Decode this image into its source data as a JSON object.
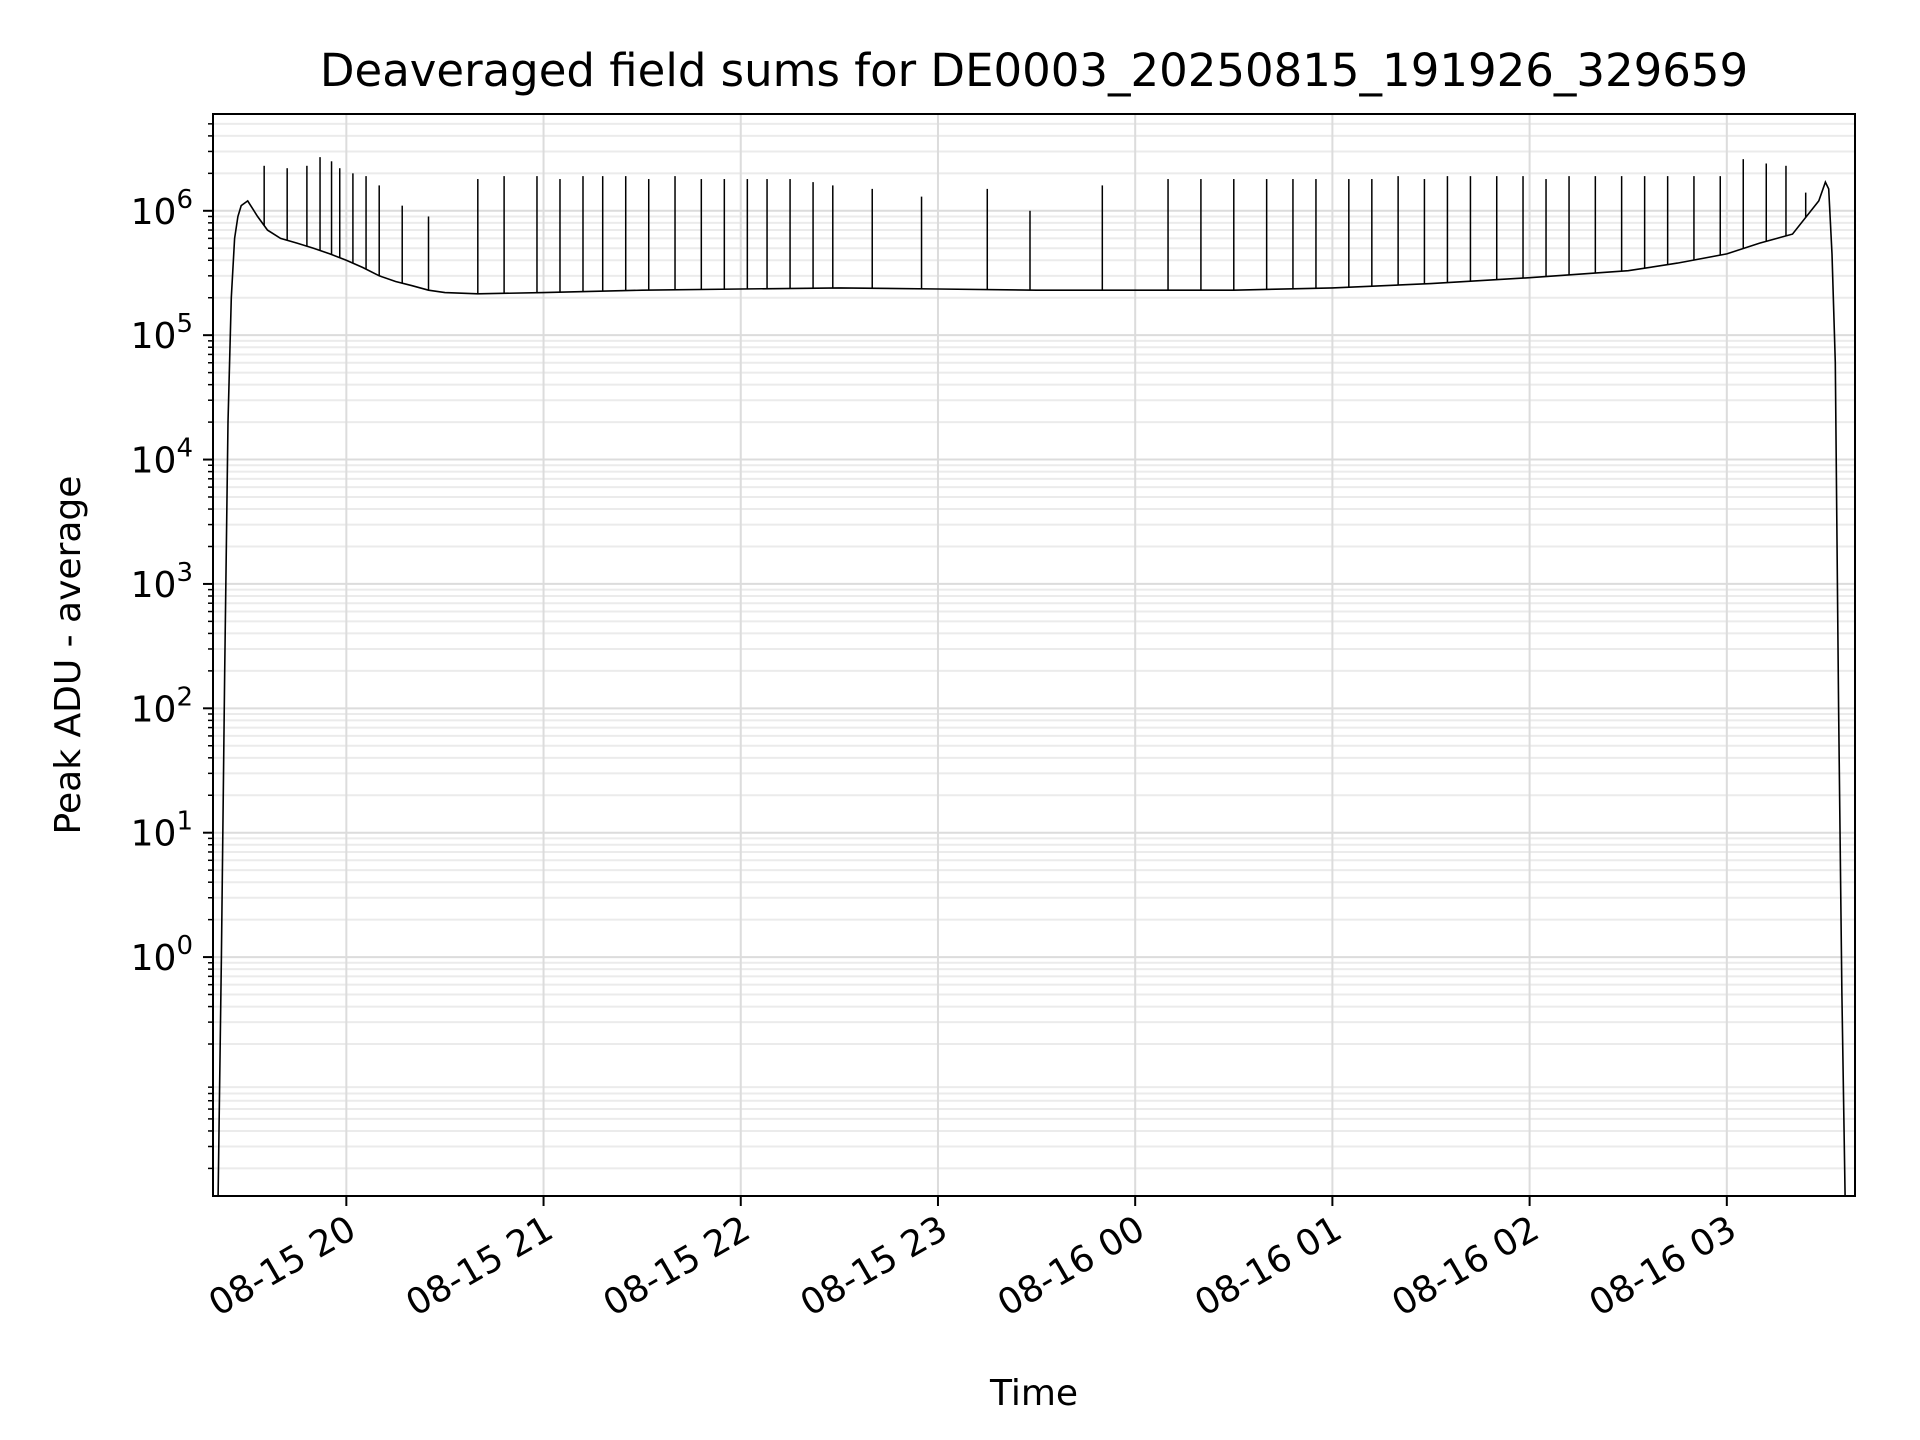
{
  "chart_data": {
    "type": "line",
    "title": "Deaveraged field sums for DE0003_20250815_191926_329659",
    "xlabel": "Time",
    "ylabel": "Peak ADU - average",
    "x_start": "2025-08-15 19:19:26",
    "x_end": "2025-08-16 03:39:00",
    "xlim": [
      "2025-08-15 19:19:26",
      "2025-08-16 03:39:00"
    ],
    "ylim": [
      0.012,
      6000000
    ],
    "yscale": "log",
    "grid": "on (major and minor)",
    "line_color": "#000000",
    "x_tick_labels": [
      "08-15 20",
      "08-15 21",
      "08-15 22",
      "08-15 23",
      "08-16 00",
      "08-16 01",
      "08-16 02",
      "08-16 03"
    ],
    "x_ticks": [
      "2025-08-15 20:00",
      "2025-08-15 21:00",
      "2025-08-15 22:00",
      "2025-08-15 23:00",
      "2025-08-16 00:00",
      "2025-08-16 01:00",
      "2025-08-16 02:00",
      "2025-08-16 03:00"
    ],
    "y_ticks": [
      1,
      10,
      100,
      1000,
      10000,
      100000,
      1000000
    ],
    "y_tick_exponents": [
      "0",
      "1",
      "2",
      "3",
      "4",
      "5",
      "6"
    ],
    "series": [
      {
        "x": [
          "2025-08-15 19:21:00",
          "2025-08-15 19:22:00",
          "2025-08-15 19:23:00",
          "2025-08-15 19:24:00",
          "2025-08-15 19:25:00",
          "2025-08-15 19:26:00",
          "2025-08-15 19:27:00",
          "2025-08-15 19:28:00",
          "2025-08-15 19:30:00",
          "2025-08-15 19:33:00",
          "2025-08-15 19:36:00",
          "2025-08-15 19:40:00",
          "2025-08-15 19:45:00",
          "2025-08-15 19:50:00",
          "2025-08-15 19:55:00",
          "2025-08-15 20:00:00",
          "2025-08-15 20:05:00",
          "2025-08-15 20:10:00",
          "2025-08-15 20:15:00",
          "2025-08-15 20:20:00",
          "2025-08-15 20:25:00",
          "2025-08-15 20:30:00",
          "2025-08-15 20:40:00",
          "2025-08-15 21:00:00",
          "2025-08-15 21:30:00",
          "2025-08-15 22:00:00",
          "2025-08-15 22:30:00",
          "2025-08-15 23:00:00",
          "2025-08-15 23:30:00",
          "2025-08-16 00:00:00",
          "2025-08-16 00:30:00",
          "2025-08-16 01:00:00",
          "2025-08-16 01:30:00",
          "2025-08-16 02:00:00",
          "2025-08-16 02:30:00",
          "2025-08-16 02:45:00",
          "2025-08-16 03:00:00",
          "2025-08-16 03:10:00",
          "2025-08-16 03:20:00",
          "2025-08-16 03:28:00",
          "2025-08-16 03:30:00",
          "2025-08-16 03:31:00",
          "2025-08-16 03:32:00",
          "2025-08-16 03:33:00",
          "2025-08-16 03:34:00",
          "2025-08-16 03:35:00",
          "2025-08-16 03:36:00"
        ],
        "values": [
          0.012,
          1,
          200,
          20000,
          200000,
          600000,
          900000,
          1100000,
          1200000,
          900000,
          700000,
          600000,
          550000,
          500000,
          450000,
          400000,
          350000,
          300000,
          270000,
          250000,
          230000,
          220000,
          215000,
          220000,
          230000,
          235000,
          240000,
          235000,
          230000,
          230000,
          230000,
          240000,
          260000,
          290000,
          330000,
          380000,
          450000,
          550000,
          650000,
          1200000,
          1700000,
          1500000,
          450000,
          60000,
          100,
          0.5,
          0.012
        ]
      }
    ],
    "spikes": {
      "x": [
        "2025-08-15 19:35:00",
        "2025-08-15 19:42:00",
        "2025-08-15 19:48:00",
        "2025-08-15 19:52:00",
        "2025-08-15 19:55:30",
        "2025-08-15 19:58:00",
        "2025-08-15 20:02:00",
        "2025-08-15 20:06:00",
        "2025-08-15 20:10:00",
        "2025-08-15 20:17:00",
        "2025-08-15 20:25:00",
        "2025-08-15 20:40:00",
        "2025-08-15 20:48:00",
        "2025-08-15 20:58:00",
        "2025-08-15 21:05:00",
        "2025-08-15 21:12:00",
        "2025-08-15 21:18:00",
        "2025-08-15 21:25:00",
        "2025-08-15 21:32:00",
        "2025-08-15 21:40:00",
        "2025-08-15 21:48:00",
        "2025-08-15 21:55:00",
        "2025-08-15 22:02:00",
        "2025-08-15 22:08:00",
        "2025-08-15 22:15:00",
        "2025-08-15 22:22:00",
        "2025-08-15 22:28:00",
        "2025-08-15 22:40:00",
        "2025-08-15 22:55:00",
        "2025-08-15 23:15:00",
        "2025-08-15 23:28:00",
        "2025-08-15 23:50:00",
        "2025-08-16 00:10:00",
        "2025-08-16 00:20:00",
        "2025-08-16 00:30:00",
        "2025-08-16 00:40:00",
        "2025-08-16 00:48:00",
        "2025-08-16 00:55:00",
        "2025-08-16 01:05:00",
        "2025-08-16 01:12:00",
        "2025-08-16 01:20:00",
        "2025-08-16 01:28:00",
        "2025-08-16 01:35:00",
        "2025-08-16 01:42:00",
        "2025-08-16 01:50:00",
        "2025-08-16 01:58:00",
        "2025-08-16 02:05:00",
        "2025-08-16 02:12:00",
        "2025-08-16 02:20:00",
        "2025-08-16 02:28:00",
        "2025-08-16 02:35:00",
        "2025-08-16 02:42:00",
        "2025-08-16 02:50:00",
        "2025-08-16 02:58:00",
        "2025-08-16 03:05:00",
        "2025-08-16 03:12:00",
        "2025-08-16 03:18:00",
        "2025-08-16 03:24:00"
      ],
      "values": [
        2300000,
        2200000,
        2300000,
        2700000,
        2500000,
        2200000,
        2000000,
        1900000,
        1600000,
        1100000,
        900000,
        1800000,
        1900000,
        1900000,
        1800000,
        1900000,
        1900000,
        1900000,
        1800000,
        1900000,
        1800000,
        1800000,
        1800000,
        1800000,
        1800000,
        1700000,
        1600000,
        1500000,
        1300000,
        1500000,
        1000000,
        1600000,
        1800000,
        1800000,
        1800000,
        1800000,
        1800000,
        1800000,
        1800000,
        1800000,
        1900000,
        1800000,
        1900000,
        1900000,
        1900000,
        1900000,
        1800000,
        1900000,
        1900000,
        1900000,
        1900000,
        1900000,
        1900000,
        1900000,
        2600000,
        2400000,
        2300000,
        1400000
      ]
    }
  }
}
